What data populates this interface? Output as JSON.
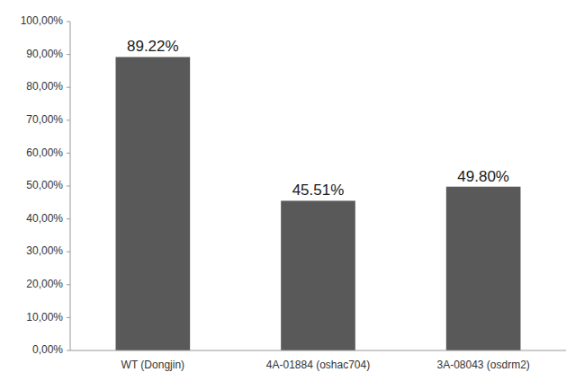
{
  "chart_data": {
    "type": "bar",
    "categories": [
      "WT (Dongjin)",
      "4A-01884 (oshac704)",
      "3A-08043 (osdrm2)"
    ],
    "values": [
      89.22,
      45.51,
      49.8
    ],
    "value_labels": [
      "89.22%",
      "45.51%",
      "49.80%"
    ],
    "data_labels": true,
    "color": "#595959",
    "ylim": [
      0,
      100
    ],
    "yticks": [
      {
        "value": 0,
        "label": "0,00%"
      },
      {
        "value": 10,
        "label": "10,00%"
      },
      {
        "value": 20,
        "label": "20,00%"
      },
      {
        "value": 30,
        "label": "30,00%"
      },
      {
        "value": 40,
        "label": "40,00%"
      },
      {
        "value": 50,
        "label": "50,00%"
      },
      {
        "value": 60,
        "label": "60,00%"
      },
      {
        "value": 70,
        "label": "70,00%"
      },
      {
        "value": 80,
        "label": "80,00%"
      },
      {
        "value": 90,
        "label": "90,00%"
      },
      {
        "value": 100,
        "label": "100,00%"
      }
    ],
    "grid": false
  }
}
